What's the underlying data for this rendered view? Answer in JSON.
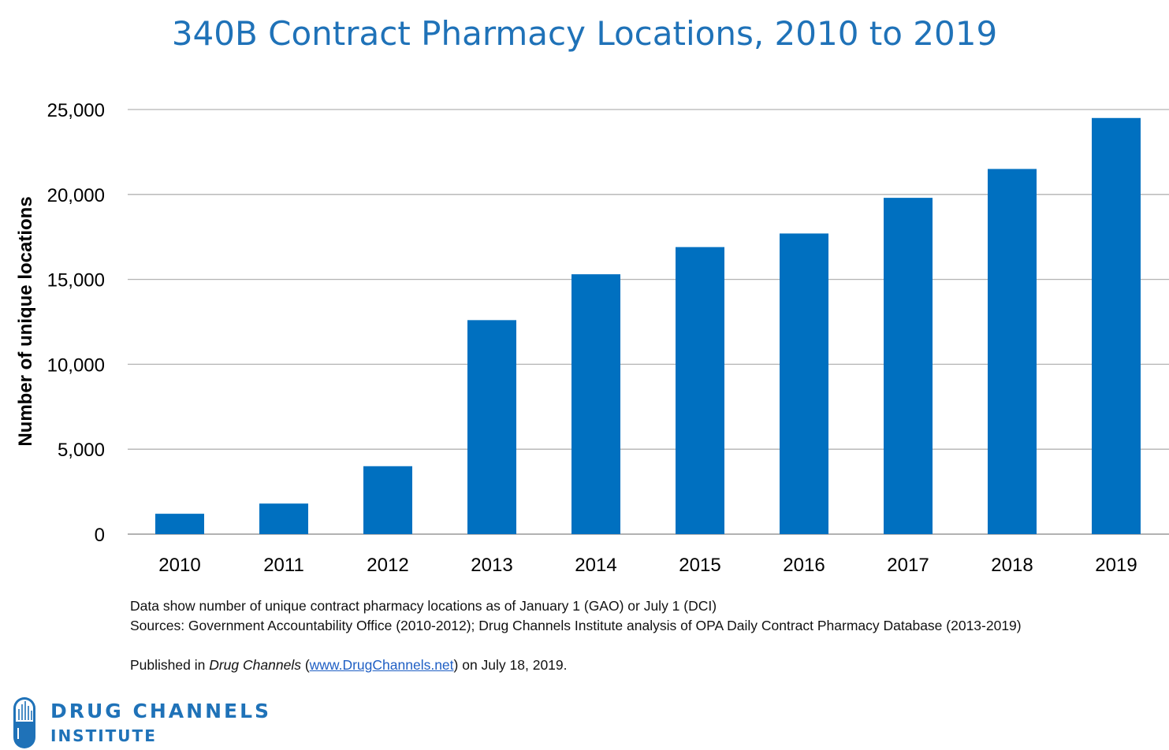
{
  "chart_data": {
    "type": "bar",
    "title": "340B Contract Pharmacy Locations, 2010 to 2019",
    "xlabel": "",
    "ylabel": "Number of unique locations",
    "categories": [
      "2010",
      "2011",
      "2012",
      "2013",
      "2014",
      "2015",
      "2016",
      "2017",
      "2018",
      "2019"
    ],
    "values": [
      1200,
      1800,
      4000,
      12600,
      15300,
      16900,
      17700,
      19800,
      21500,
      24500
    ],
    "ylim": [
      0,
      25000
    ],
    "yticks": [
      0,
      5000,
      10000,
      15000,
      20000,
      25000
    ],
    "ytick_labels": [
      "0",
      "5,000",
      "10,000",
      "15,000",
      "20,000",
      "25,000"
    ],
    "grid": true,
    "bar_color": "#0070c0",
    "title_color": "#1f72b8"
  },
  "notes": {
    "line1": "Data show number of unique contract pharmacy locations as of January 1 (GAO) or July 1 (DCI)",
    "line2": "Sources: Government Accountability Office (2010-2012); Drug Channels Institute analysis of OPA Daily Contract Pharmacy Database (2013-2019)",
    "published_prefix": "Published in ",
    "published_pub": "Drug Channels",
    "published_open": " (",
    "published_link": "www.DrugChannels.net",
    "published_suffix": ") on July 18, 2019."
  },
  "logo": {
    "line1": "DRUG CHANNELS",
    "line2": "INSTITUTE"
  }
}
